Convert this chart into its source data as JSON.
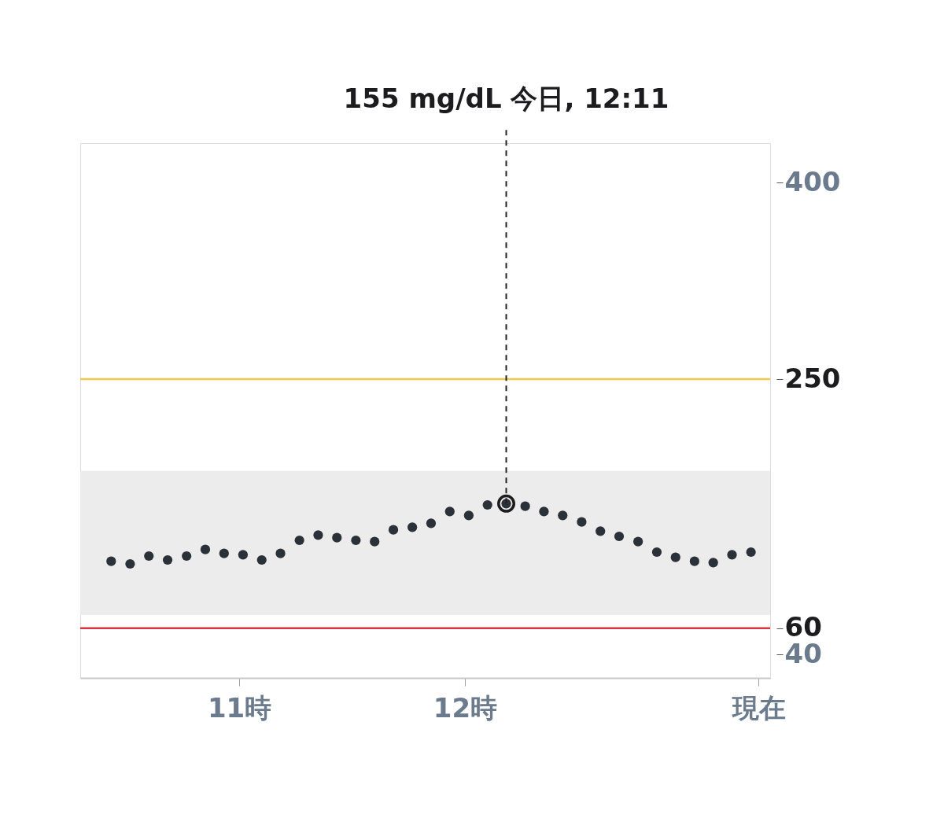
{
  "chart_data": {
    "type": "scatter",
    "marker": "circle",
    "grid": false,
    "x": [
      10.433,
      10.517,
      10.6,
      10.683,
      10.767,
      10.85,
      10.933,
      11.017,
      11.1,
      11.183,
      11.267,
      11.35,
      11.433,
      11.517,
      11.6,
      11.683,
      11.767,
      11.85,
      11.933,
      12.017,
      12.1,
      12.183,
      12.267,
      12.35,
      12.433,
      12.517,
      12.6,
      12.683,
      12.767,
      12.85,
      12.933,
      13.017,
      13.1,
      13.183,
      13.267
    ],
    "series": [
      {
        "color": "#2b3138",
        "values": [
          111,
          109,
          115,
          112,
          115,
          120,
          117,
          116,
          112,
          117,
          127,
          131,
          129,
          127,
          126,
          135,
          137,
          140,
          149,
          146,
          154,
          155,
          153,
          149,
          146,
          141,
          134,
          130,
          126,
          118,
          114,
          111,
          110,
          116,
          118
        ]
      }
    ],
    "xlim": [
      10.296,
      13.352
    ],
    "xticks": [
      {
        "value": 11,
        "label": "11時"
      },
      {
        "value": 12,
        "label": "12時"
      },
      {
        "value": 13.3,
        "label": "現在"
      }
    ],
    "ylim": [
      22,
      430
    ],
    "yticks": [
      400,
      250,
      60,
      40
    ],
    "ref_lines": [
      {
        "axis": "y",
        "value": 250,
        "color": "#f2c94c"
      },
      {
        "axis": "y",
        "value": 60,
        "color": "#d9343f"
      }
    ],
    "bands": [
      {
        "axis": "y",
        "from": 70,
        "to": 180,
        "color": "#ececec"
      }
    ],
    "annotations": [
      {
        "text": "155 mg/dL 今日, 12:11",
        "x": 12.183,
        "y": 155
      }
    ]
  }
}
